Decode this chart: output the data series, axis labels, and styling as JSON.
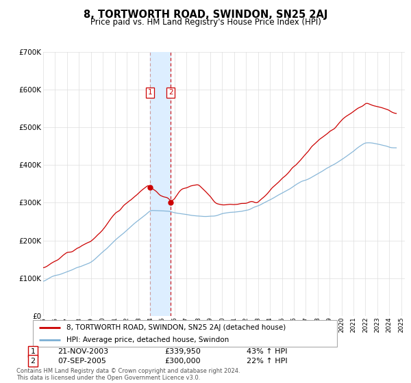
{
  "title": "8, TORTWORTH ROAD, SWINDON, SN25 2AJ",
  "subtitle": "Price paid vs. HM Land Registry's House Price Index (HPI)",
  "background_color": "#ffffff",
  "plot_bg_color": "#ffffff",
  "grid_color": "#dddddd",
  "red_color": "#cc0000",
  "blue_color": "#7bafd4",
  "span_color": "#ddeeff",
  "transaction1": {
    "date": "21-NOV-2003",
    "price": 339950,
    "pct": "43% ↑ HPI",
    "label": "1",
    "year_idx": 107
  },
  "transaction2": {
    "date": "07-SEP-2005",
    "price": 300000,
    "pct": "22% ↑ HPI",
    "label": "2",
    "year_idx": 128
  },
  "ylim": [
    0,
    700000
  ],
  "yticks": [
    0,
    100000,
    200000,
    300000,
    400000,
    500000,
    600000,
    700000
  ],
  "footer": "Contains HM Land Registry data © Crown copyright and database right 2024.\nThis data is licensed under the Open Government Licence v3.0.",
  "legend_line1": "8, TORTWORTH ROAD, SWINDON, SN25 2AJ (detached house)",
  "legend_line2": "HPI: Average price, detached house, Swindon"
}
